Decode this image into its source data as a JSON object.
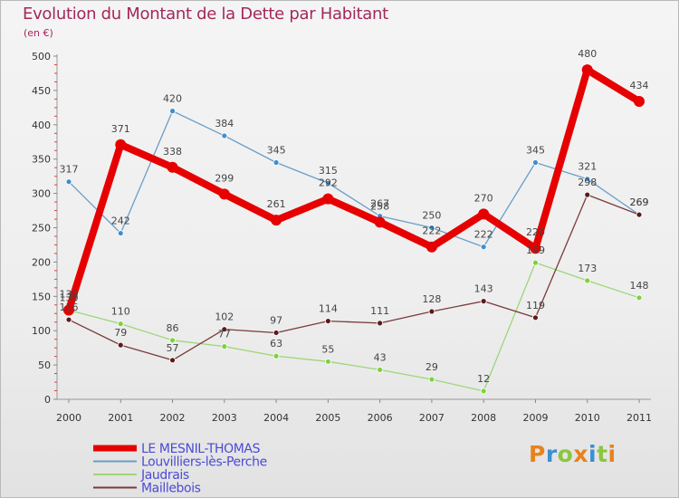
{
  "title": "Evolution du Montant de la Dette par Habitant",
  "subtitle": "(en €)",
  "logo": {
    "text": "Proxiti",
    "colors": [
      "#e9821c",
      "#3b8fd4",
      "#8cc63f",
      "#e9821c",
      "#3b8fd4",
      "#8cc63f",
      "#e9821c"
    ]
  },
  "chart_data": {
    "type": "line",
    "title": "Evolution du Montant de la Dette par Habitant",
    "subtitle": "(en €)",
    "xlabel": "",
    "ylabel": "",
    "x": [
      "2000",
      "2001",
      "2002",
      "2003",
      "2004",
      "2005",
      "2006",
      "2007",
      "2008",
      "2009",
      "2010",
      "2011"
    ],
    "ylim": [
      0,
      500
    ],
    "yticks": [
      0,
      50,
      100,
      150,
      200,
      250,
      300,
      350,
      400,
      450,
      500
    ],
    "grid": false,
    "legend_position": "bottom-left",
    "series": [
      {
        "name": "LE MESNIL-THOMAS",
        "color": "#e60000",
        "emphasis": true,
        "values": [
          130,
          371,
          338,
          299,
          261,
          292,
          258,
          222,
          270,
          220,
          480,
          434
        ]
      },
      {
        "name": "Louvilliers-lès-Perche",
        "color": "#6a9ec8",
        "point_color": "#3e8ed0",
        "emphasis": false,
        "values": [
          317,
          242,
          420,
          384,
          345,
          315,
          267,
          250,
          222,
          345,
          321,
          269
        ]
      },
      {
        "name": "Jaudrais",
        "color": "#9ed676",
        "point_color": "#7cd23c",
        "emphasis": false,
        "values": [
          130,
          110,
          86,
          77,
          63,
          55,
          43,
          29,
          12,
          199,
          173,
          148
        ]
      },
      {
        "name": "Maillebois",
        "color": "#7a3a3a",
        "point_color": "#5c1a1a",
        "emphasis": false,
        "values": [
          116,
          79,
          57,
          102,
          97,
          114,
          111,
          128,
          143,
          119,
          298,
          269
        ]
      }
    ]
  }
}
